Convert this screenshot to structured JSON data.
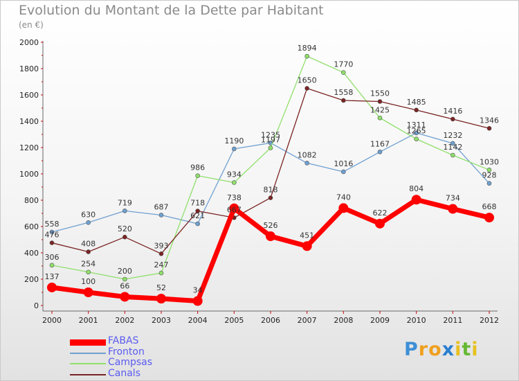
{
  "title": "Evolution du Montant de la Dette par Habitant",
  "subtitle": "(en €)",
  "logo": {
    "letters": [
      "P",
      "r",
      "o",
      "x",
      "i",
      "t",
      "i"
    ],
    "colors": [
      "#3d8fd6",
      "#f0a020",
      "#f0a020",
      "#2a7fd0",
      "#e8c020",
      "#66b832",
      "#e8c020"
    ]
  },
  "chart_data": {
    "type": "line",
    "x": [
      2000,
      2001,
      2002,
      2003,
      2004,
      2005,
      2006,
      2007,
      2008,
      2009,
      2010,
      2011,
      2012
    ],
    "ylim": [
      0,
      2000
    ],
    "yticks": [
      0,
      200,
      400,
      600,
      800,
      1000,
      1200,
      1400,
      1600,
      1800,
      2000
    ],
    "grid": false,
    "legend_position": "bottom-left",
    "series": [
      {
        "name": "FABAS",
        "color": "#ff0000",
        "values": [
          137,
          100,
          66,
          52,
          34,
          738,
          526,
          451,
          740,
          622,
          804,
          734,
          668
        ]
      },
      {
        "name": "Fronton",
        "color": "#6fa0d0",
        "values": [
          558,
          630,
          719,
          687,
          621,
          1190,
          1235,
          1082,
          1016,
          1167,
          1311,
          1232,
          928
        ]
      },
      {
        "name": "Campsas",
        "color": "#8fe06a",
        "values": [
          306,
          254,
          200,
          247,
          986,
          934,
          1197,
          1894,
          1770,
          1425,
          1265,
          1142,
          1030
        ]
      },
      {
        "name": "Canals",
        "color": "#7a2323",
        "values": [
          476,
          408,
          520,
          393,
          718,
          667,
          818,
          1650,
          1558,
          1550,
          1485,
          1416,
          1346
        ]
      }
    ]
  }
}
